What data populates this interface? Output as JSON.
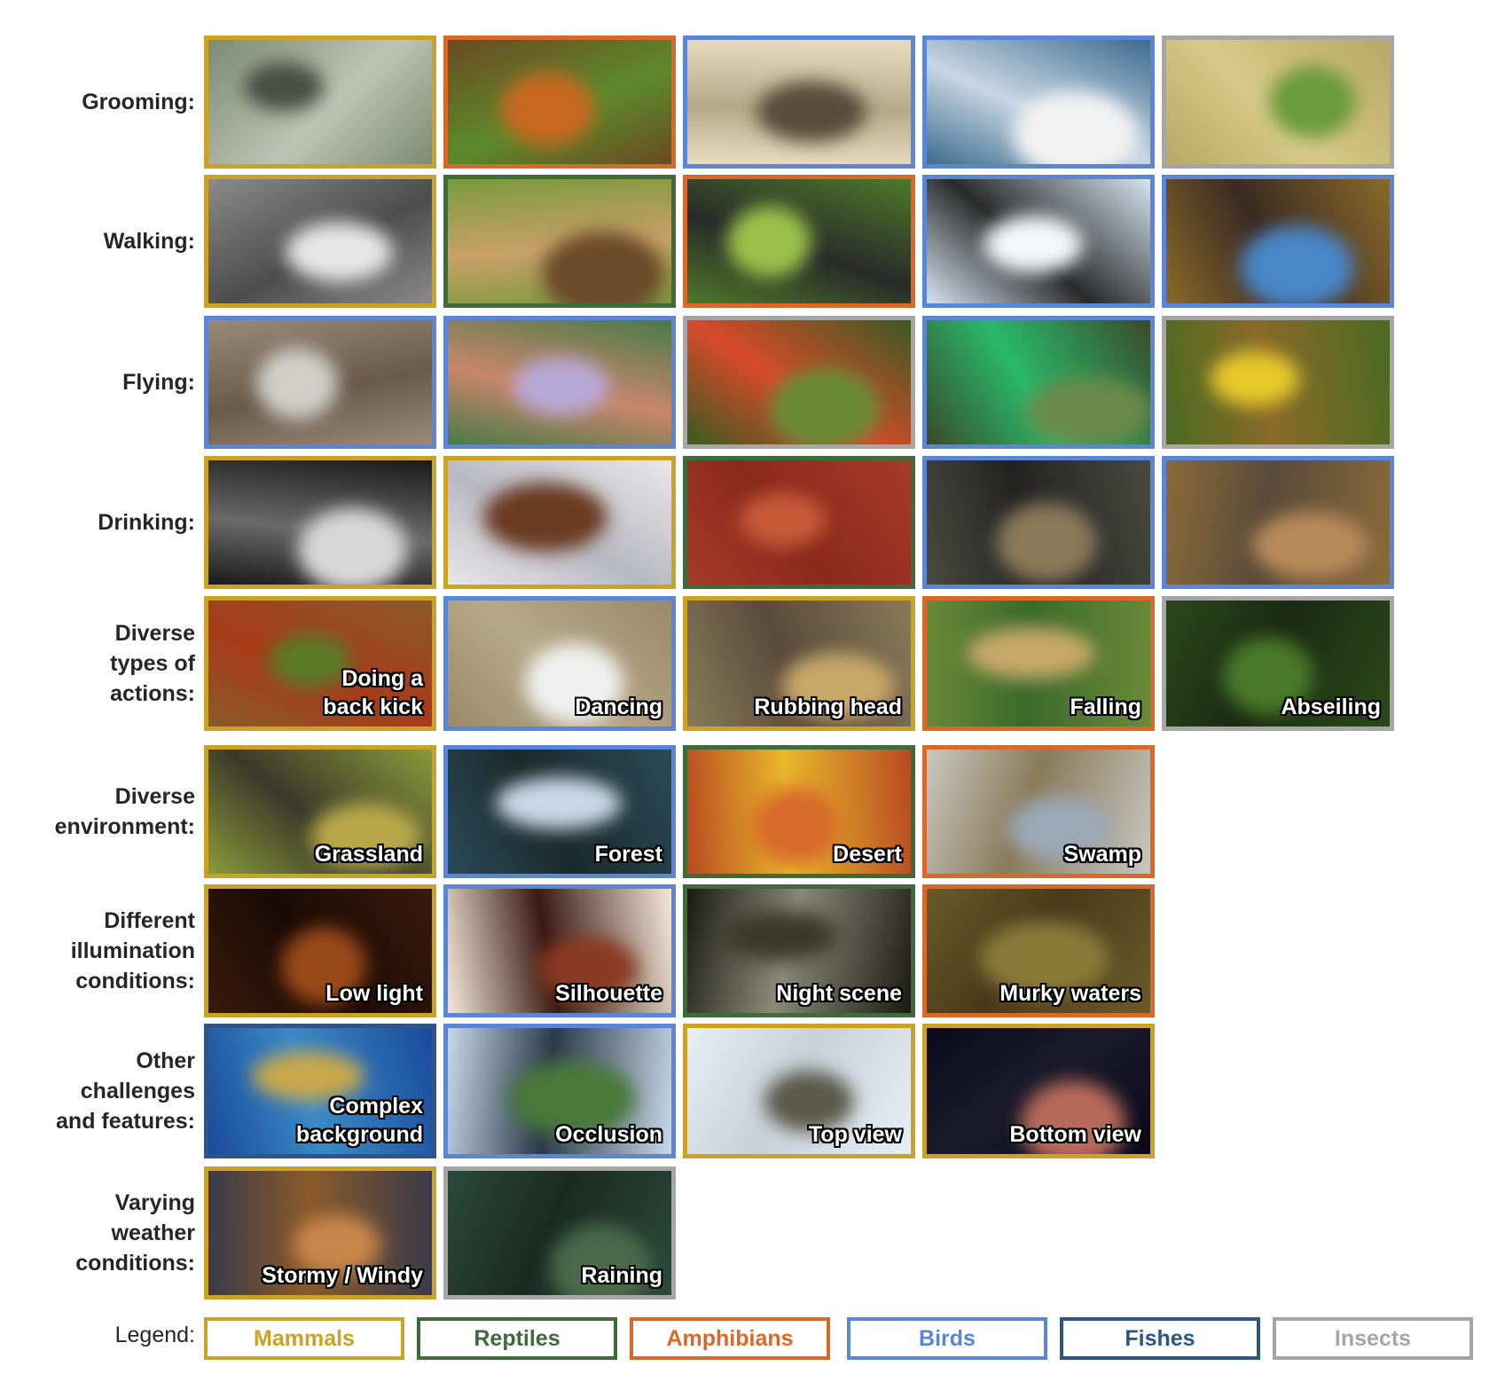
{
  "legend": {
    "label": "Legend:",
    "items": [
      {
        "name": "Mammals",
        "color": "#c9a227"
      },
      {
        "name": "Reptiles",
        "color": "#3f6b3a"
      },
      {
        "name": "Amphibians",
        "color": "#d9692b"
      },
      {
        "name": "Birds",
        "color": "#5b86d6"
      },
      {
        "name": "Fishes",
        "color": "#2e5585"
      },
      {
        "name": "Insects",
        "color": "#a6a6a6"
      }
    ]
  },
  "rows": [
    {
      "label": [
        "Grooming:"
      ],
      "cells": [
        {
          "category": "Mammals",
          "caption": [],
          "palette": [
            "#7d8a70",
            "#4a4d44",
            "#bfc3b4"
          ]
        },
        {
          "category": "Amphibians",
          "caption": [],
          "palette": [
            "#6b4a22",
            "#c8671f",
            "#5d8a2c"
          ]
        },
        {
          "category": "Birds",
          "caption": [],
          "palette": [
            "#e8dcc0",
            "#5c4a3a",
            "#b8a88a"
          ]
        },
        {
          "category": "Birds",
          "caption": [],
          "palette": [
            "#3d6b8f",
            "#f2f2f2",
            "#c7d6e3"
          ]
        },
        {
          "category": "Insects",
          "caption": [],
          "palette": [
            "#b8a866",
            "#6a9a3a",
            "#d8c98a"
          ]
        }
      ]
    },
    {
      "label": [
        "Walking:"
      ],
      "cells": [
        {
          "category": "Mammals",
          "caption": [],
          "palette": [
            "#8a8a8a",
            "#e6e6e6",
            "#4d4d4d"
          ]
        },
        {
          "category": "Reptiles",
          "caption": [],
          "palette": [
            "#7a9a3a",
            "#6b4a2a",
            "#c8a06a"
          ]
        },
        {
          "category": "Amphibians",
          "caption": [],
          "palette": [
            "#4d7a2a",
            "#9ac24a",
            "#2a2a2a"
          ]
        },
        {
          "category": "Birds",
          "caption": [],
          "palette": [
            "#d6e3ef",
            "#f5f8fb",
            "#2a2a2a"
          ]
        },
        {
          "category": "Birds",
          "caption": [],
          "palette": [
            "#8a6a2a",
            "#4a86c8",
            "#3a2a22"
          ]
        }
      ]
    },
    {
      "label": [
        "Flying:"
      ],
      "cells": [
        {
          "category": "Birds",
          "caption": [],
          "palette": [
            "#9a8a7a",
            "#cfcfc8",
            "#6a5a4a"
          ]
        },
        {
          "category": "Birds",
          "caption": [],
          "palette": [
            "#4a7a4a",
            "#b8a8d8",
            "#c8866a"
          ]
        },
        {
          "category": "Insects",
          "caption": [],
          "palette": [
            "#3a5a22",
            "#6a8a3a",
            "#d84a2a"
          ]
        },
        {
          "category": "Birds",
          "caption": [],
          "palette": [
            "#3a4a2a",
            "#6a8a4a",
            "#2ab86a"
          ]
        },
        {
          "category": "Insects",
          "caption": [],
          "palette": [
            "#4a6a22",
            "#e8c82a",
            "#8a6a2a"
          ]
        }
      ]
    },
    {
      "label": [
        "Drinking:"
      ],
      "cells": [
        {
          "category": "Mammals",
          "caption": [],
          "palette": [
            "#1a1a1a",
            "#d8d8d8",
            "#6a6a6a"
          ]
        },
        {
          "category": "Mammals",
          "caption": [],
          "palette": [
            "#e8e8ea",
            "#6a3a22",
            "#b8b8c0"
          ]
        },
        {
          "category": "Reptiles",
          "caption": [],
          "palette": [
            "#a83a2a",
            "#c85a3a",
            "#8a2a1a"
          ]
        },
        {
          "category": "Birds",
          "caption": [],
          "palette": [
            "#4a4a42",
            "#8a7a5a",
            "#222222"
          ]
        },
        {
          "category": "Birds",
          "caption": [],
          "palette": [
            "#8a6a3a",
            "#b88a5a",
            "#5a4a3a"
          ]
        }
      ]
    },
    {
      "label": [
        "Diverse",
        "types of",
        "actions:"
      ],
      "cells": [
        {
          "category": "Mammals",
          "caption": [
            "Doing a",
            "back kick"
          ],
          "palette": [
            "#8a5a2a",
            "#5a7a2a",
            "#a83a1a"
          ]
        },
        {
          "category": "Birds",
          "caption": [
            "Dancing"
          ],
          "palette": [
            "#9a8a6a",
            "#f0f0f0",
            "#b8a88a"
          ]
        },
        {
          "category": "Mammals",
          "caption": [
            "Rubbing head"
          ],
          "palette": [
            "#8a7a5a",
            "#c8a86a",
            "#5a4a3a"
          ]
        },
        {
          "category": "Amphibians",
          "caption": [
            "Falling"
          ],
          "palette": [
            "#6a8a3a",
            "#c8a86a",
            "#3a6a2a"
          ]
        },
        {
          "category": "Insects",
          "caption": [
            "Abseiling"
          ],
          "palette": [
            "#2a4a1a",
            "#4a7a2a",
            "#1a2a12"
          ]
        }
      ]
    },
    {
      "label": [
        "Diverse",
        "environment:"
      ],
      "cells": [
        {
          "category": "Mammals",
          "caption": [
            "Grassland"
          ],
          "palette": [
            "#8a9a3a",
            "#b8a84a",
            "#3a3a2a"
          ]
        },
        {
          "category": "Birds",
          "caption": [
            "Forest"
          ],
          "palette": [
            "#2a4a5a",
            "#c8d8e8",
            "#1a2a2a"
          ]
        },
        {
          "category": "Reptiles",
          "caption": [
            "Desert"
          ],
          "palette": [
            "#b84a22",
            "#d86a2a",
            "#e8b82a"
          ]
        },
        {
          "category": "Amphibians",
          "caption": [
            "Swamp"
          ],
          "palette": [
            "#c8c8c0",
            "#9aa8b8",
            "#8a7a5a"
          ]
        }
      ]
    },
    {
      "label": [
        "Different",
        "illumination",
        "conditions:"
      ],
      "cells": [
        {
          "category": "Mammals",
          "caption": [
            "Low light"
          ],
          "palette": [
            "#3a1a0a",
            "#9a4a1a",
            "#1a0a05"
          ]
        },
        {
          "category": "Birds",
          "caption": [
            "Silhouette"
          ],
          "palette": [
            "#f5e8d8",
            "#8a3a22",
            "#3a1a12"
          ]
        },
        {
          "category": "Reptiles",
          "caption": [
            "Night scene"
          ],
          "palette": [
            "#1a1a12",
            "#3a3a2a",
            "#8a8a7a"
          ]
        },
        {
          "category": "Amphibians",
          "caption": [
            "Murky waters"
          ],
          "palette": [
            "#6a5a2a",
            "#8a7a3a",
            "#4a3a1a"
          ]
        }
      ]
    },
    {
      "label": [
        "Other",
        "challenges",
        "and features:"
      ],
      "cells": [
        {
          "category": "Fishes",
          "caption": [
            "Complex",
            "background"
          ],
          "palette": [
            "#1a4a9a",
            "#c8a84a",
            "#3a8ac8"
          ]
        },
        {
          "category": "Birds",
          "caption": [
            "Occlusion"
          ],
          "palette": [
            "#c8d8e8",
            "#4a7a3a",
            "#2a3a4a"
          ]
        },
        {
          "category": "Mammals",
          "caption": [
            "Top view"
          ],
          "palette": [
            "#e8eef5",
            "#5a5a4a",
            "#c8d0d8"
          ]
        },
        {
          "category": "Mammals",
          "caption": [
            "Bottom view"
          ],
          "palette": [
            "#0a0a1a",
            "#b86a5a",
            "#1a1a2a"
          ]
        }
      ]
    },
    {
      "label": [
        "Varying",
        "weather",
        "conditions:"
      ],
      "cells": [
        {
          "category": "Mammals",
          "caption": [
            "Stormy / Windy"
          ],
          "palette": [
            "#3a3a4a",
            "#c8864a",
            "#8a5a2a"
          ]
        },
        {
          "category": "Insects",
          "caption": [
            "Raining"
          ],
          "palette": [
            "#2a4a3a",
            "#4a6a4a",
            "#1a2a22"
          ]
        }
      ]
    }
  ]
}
